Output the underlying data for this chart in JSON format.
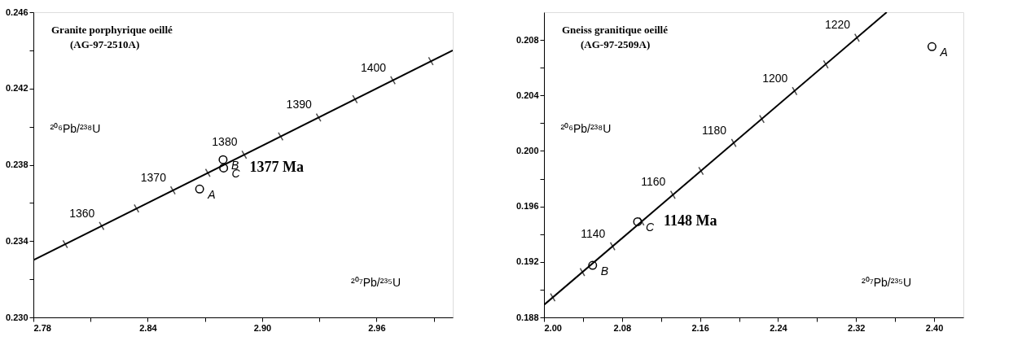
{
  "chart_data": [
    {
      "type": "line",
      "title": "Granite porphyrique oeillé",
      "subtitle": "(AG-97-2510A)",
      "xlabel": "²⁰⁷Pb/²³⁵U",
      "ylabel": "²⁰⁶Pb/²³⁸U",
      "xlim": [
        2.78,
        3.0
      ],
      "ylim": [
        0.23,
        0.246
      ],
      "xticks": [
        {
          "value": 2.78,
          "label": "2.78"
        },
        {
          "value": 2.81,
          "label": null
        },
        {
          "value": 2.84,
          "label": "2.84"
        },
        {
          "value": 2.87,
          "label": null
        },
        {
          "value": 2.9,
          "label": "2.90"
        },
        {
          "value": 2.93,
          "label": null
        },
        {
          "value": 2.96,
          "label": "2.96"
        },
        {
          "value": 2.99,
          "label": null
        }
      ],
      "yticks": [
        {
          "value": 0.23,
          "label": "0.230"
        },
        {
          "value": 0.232,
          "label": null
        },
        {
          "value": 0.234,
          "label": "0.234"
        },
        {
          "value": 0.236,
          "label": null
        },
        {
          "value": 0.238,
          "label": "0.238"
        },
        {
          "value": 0.24,
          "label": null
        },
        {
          "value": 0.242,
          "label": "0.242"
        },
        {
          "value": 0.244,
          "label": null
        },
        {
          "value": 0.246,
          "label": "0.246"
        }
      ],
      "grid": false,
      "series": [
        {
          "color": "#000000",
          "x": [
            2.78,
            3.0
          ],
          "values": [
            0.233,
            0.244
          ]
        },
        {
          "type": "scatter",
          "color": "#000000",
          "x": [
            2.7967,
            2.8158,
            2.8341,
            2.8532,
            2.8715,
            2.8906,
            2.9097,
            2.9296,
            2.9487,
            2.9686,
            2.9885
          ],
          "values": [
            0.23384,
            0.23479,
            0.23571,
            0.23666,
            0.23758,
            0.23853,
            0.23949,
            0.24048,
            0.24144,
            0.24243,
            0.24343
          ]
        },
        {
          "type": "scatter",
          "name": "A",
          "color": "#000000",
          "marker": "circle",
          "x": [
            2.8672
          ],
          "values": [
            0.23673
          ]
        },
        {
          "type": "scatter",
          "name": "B",
          "color": "#000000",
          "marker": "circle",
          "x": [
            2.8795
          ],
          "values": [
            0.23827
          ]
        },
        {
          "type": "scatter",
          "name": "C",
          "color": "#000000",
          "marker": "circle",
          "x": [
            2.8798
          ],
          "values": [
            0.23783
          ]
        }
      ],
      "annotations": [
        {
          "text": "1360",
          "x": 2.8158,
          "y": 0.23479
        },
        {
          "text": "1370",
          "x": 2.8532,
          "y": 0.23666
        },
        {
          "text": "1380",
          "x": 2.8906,
          "y": 0.23853
        },
        {
          "text": "1390",
          "x": 2.9296,
          "y": 0.24048
        },
        {
          "text": "1400",
          "x": 2.9686,
          "y": 0.24243
        },
        {
          "text": "1377 Ma",
          "x": 2.8798,
          "y": 0.23783
        }
      ]
    },
    {
      "type": "line",
      "title": "Gneiss granitique oeillé",
      "subtitle": "(AG-97-2509A)",
      "xlabel": "²⁰⁷Pb/²³⁵U",
      "ylabel": "²⁰⁶Pb/²³⁸U",
      "xlim": [
        2.0,
        2.43
      ],
      "ylim": [
        0.188,
        0.21
      ],
      "xticks": [
        {
          "value": 2.0,
          "label": "2.00"
        },
        {
          "value": 2.04,
          "label": null
        },
        {
          "value": 2.08,
          "label": "2.08"
        },
        {
          "value": 2.12,
          "label": null
        },
        {
          "value": 2.16,
          "label": "2.16"
        },
        {
          "value": 2.2,
          "label": null
        },
        {
          "value": 2.24,
          "label": "2.24"
        },
        {
          "value": 2.28,
          "label": null
        },
        {
          "value": 2.32,
          "label": "2.32"
        },
        {
          "value": 2.36,
          "label": null
        },
        {
          "value": 2.4,
          "label": "2.40"
        }
      ],
      "yticks": [
        {
          "value": 0.188,
          "label": "0.188"
        },
        {
          "value": 0.19,
          "label": null
        },
        {
          "value": 0.192,
          "label": "0.192"
        },
        {
          "value": 0.194,
          "label": null
        },
        {
          "value": 0.196,
          "label": "0.196"
        },
        {
          "value": 0.198,
          "label": null
        },
        {
          "value": 0.2,
          "label": "0.200"
        },
        {
          "value": 0.202,
          "label": null
        },
        {
          "value": 0.204,
          "label": "0.204"
        },
        {
          "value": 0.206,
          "label": null
        },
        {
          "value": 0.208,
          "label": "0.208"
        }
      ],
      "grid": false,
      "series": [
        {
          "color": "#000000",
          "x": [
            2.0,
            2.3514
          ],
          "values": [
            0.1889,
            0.21
          ]
        },
        {
          "type": "scatter",
          "color": "#000000",
          "x": [
            2.009,
            2.0394,
            2.0704,
            2.1002,
            2.1322,
            2.161,
            2.1946,
            2.2234,
            2.257,
            2.289,
            2.321
          ],
          "values": [
            0.18944,
            0.19126,
            0.19312,
            0.19491,
            0.19683,
            0.19856,
            0.20058,
            0.2023,
            0.20432,
            0.20624,
            0.20816
          ]
        },
        {
          "type": "scatter",
          "name": "A",
          "color": "#000000",
          "marker": "circle",
          "x": [
            2.3978
          ],
          "values": [
            0.20752
          ]
        },
        {
          "type": "scatter",
          "name": "B",
          "color": "#000000",
          "marker": "circle",
          "x": [
            2.0499
          ],
          "values": [
            0.19175
          ]
        },
        {
          "type": "scatter",
          "name": "C",
          "color": "#000000",
          "marker": "circle",
          "x": [
            2.096
          ],
          "values": [
            0.1949
          ]
        }
      ],
      "annotations": [
        {
          "text": "1140",
          "x": 2.0704,
          "y": 0.19312
        },
        {
          "text": "1160",
          "x": 2.1322,
          "y": 0.19683
        },
        {
          "text": "1180",
          "x": 2.1946,
          "y": 0.20058
        },
        {
          "text": "1200",
          "x": 2.257,
          "y": 0.20432
        },
        {
          "text": "1220",
          "x": 2.321,
          "y": 0.20816
        },
        {
          "text": "1148 Ma",
          "x": 2.096,
          "y": 0.1949
        }
      ]
    }
  ]
}
